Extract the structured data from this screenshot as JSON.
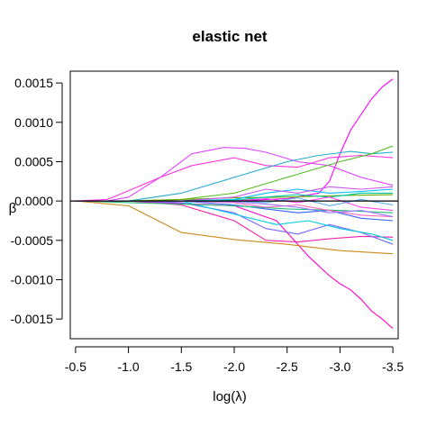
{
  "chart_data": {
    "type": "line",
    "title": "elastic net",
    "xlabel": "log(λ)",
    "ylabel": "β",
    "xlim": [
      -0.45,
      -3.55
    ],
    "ylim": [
      -0.00175,
      0.00165
    ],
    "xticks": [
      -0.5,
      -1.0,
      -1.5,
      -2.0,
      -2.5,
      -3.0,
      -3.5
    ],
    "xtick_labels": [
      "-0.5",
      "-1.0",
      "-1.5",
      "-2.0",
      "-2.5",
      "-3.0",
      "-3.5"
    ],
    "yticks": [
      0.0015,
      0.001,
      0.0005,
      0.0,
      -0.0005,
      -0.001,
      -0.0015
    ],
    "ytick_labels": [
      "0.0015",
      "0.0010",
      "0.0005",
      "0.0000",
      "-0.0005",
      "-0.0010",
      "-0.0015"
    ],
    "reference_line": 0,
    "grid": false,
    "legend": "none",
    "series": [
      {
        "color": "#ff00ff",
        "x": [
          -0.5,
          -1.0,
          -1.5,
          -2.0,
          -2.5,
          -2.8,
          -2.9,
          -3.0,
          -3.1,
          -3.2,
          -3.3,
          -3.4,
          -3.5
        ],
        "y": [
          0,
          0,
          0,
          0,
          3e-05,
          0.0001,
          0.00025,
          0.0006,
          0.0009,
          0.0011,
          0.0013,
          0.00145,
          0.00155
        ]
      },
      {
        "color": "#ff00cc",
        "x": [
          -0.5,
          -1.0,
          -1.3,
          -2.0,
          -2.4,
          -2.7,
          -2.9,
          -3.0,
          -3.1,
          -3.2,
          -3.3,
          -3.4,
          -3.5
        ],
        "y": [
          0,
          0,
          -2e-05,
          -6e-05,
          -0.00025,
          -0.0007,
          -0.00095,
          -0.00105,
          -0.00113,
          -0.00125,
          -0.0014,
          -0.0015,
          -0.00162
        ]
      },
      {
        "color": "#cc8a1a",
        "x": [
          -0.5,
          -1.0,
          -1.5,
          -2.0,
          -2.5,
          -3.0,
          -3.5
        ],
        "y": [
          0,
          -6e-05,
          -0.0004,
          -0.00049,
          -0.00055,
          -0.00063,
          -0.00067
        ]
      },
      {
        "color": "#ff33dd",
        "x": [
          -0.5,
          -0.8,
          -1.0,
          -1.3,
          -1.6,
          -2.0,
          -2.3,
          -2.6,
          -2.9,
          -3.2,
          -3.5
        ],
        "y": [
          0,
          2e-05,
          0.00013,
          0.0003,
          0.00045,
          0.00055,
          0.00045,
          0.00043,
          0.00055,
          0.00058,
          0.00055
        ]
      },
      {
        "color": "#dd44ff",
        "x": [
          -0.5,
          -0.8,
          -1.0,
          -1.3,
          -1.6,
          -1.9,
          -2.1,
          -2.3,
          -2.6,
          -2.9,
          -3.2,
          -3.5
        ],
        "y": [
          0,
          0,
          5e-05,
          0.0003,
          0.0006,
          0.00068,
          0.00067,
          0.00062,
          0.0005,
          0.00045,
          0.0003,
          0.0002
        ]
      },
      {
        "color": "#22aacc",
        "x": [
          -0.5,
          -1.0,
          -1.5,
          -2.0,
          -2.5,
          -2.8,
          -3.1,
          -3.3,
          -3.5
        ],
        "y": [
          0,
          0,
          0.0001,
          0.0003,
          0.0005,
          0.00058,
          0.00063,
          0.0006,
          0.00062
        ]
      },
      {
        "color": "#55bb22",
        "x": [
          -0.5,
          -1.0,
          -1.5,
          -2.0,
          -2.5,
          -3.0,
          -3.3,
          -3.5
        ],
        "y": [
          0,
          0,
          2e-05,
          0.0001,
          0.0003,
          0.0005,
          0.0006,
          0.0007
        ]
      },
      {
        "color": "#ee22aa",
        "x": [
          -0.5,
          -1.0,
          -1.5,
          -2.0,
          -2.3,
          -2.6,
          -2.9,
          -3.2,
          -3.5
        ],
        "y": [
          0,
          0,
          -5e-05,
          -0.00025,
          -0.0005,
          -0.00052,
          -0.00048,
          -0.00045,
          -0.00046
        ]
      },
      {
        "color": "#7766ff",
        "x": [
          -0.5,
          -1.0,
          -1.5,
          -2.0,
          -2.3,
          -2.6,
          -2.9,
          -3.2,
          -3.5
        ],
        "y": [
          0,
          0,
          -2e-05,
          -0.00015,
          -0.00035,
          -0.00042,
          -0.0003,
          -0.0004,
          -0.00055
        ]
      },
      {
        "color": "#00ccdd",
        "x": [
          -0.5,
          -1.0,
          -1.5,
          -1.8,
          -2.1,
          -2.4,
          -2.7,
          -3.0,
          -3.3,
          -3.5
        ],
        "y": [
          0,
          0,
          0,
          -0.0001,
          -0.0002,
          -0.0003,
          -0.00025,
          -0.00035,
          -0.00042,
          -0.0005
        ]
      },
      {
        "color": "#3366ff",
        "x": [
          -0.5,
          -1.0,
          -1.5,
          -2.0,
          -2.3,
          -2.6,
          -2.9,
          -3.2,
          -3.5
        ],
        "y": [
          0,
          0,
          0,
          -5e-05,
          -0.0001,
          -0.00015,
          -0.00012,
          -0.00022,
          -0.00025
        ]
      },
      {
        "color": "#22bb77",
        "x": [
          -0.5,
          -1.0,
          -1.5,
          -2.0,
          -2.5,
          -3.0,
          -3.5
        ],
        "y": [
          0,
          -2e-05,
          -4e-05,
          -6e-05,
          -0.0001,
          -0.00012,
          -0.00015
        ]
      },
      {
        "color": "#66aa00",
        "x": [
          -0.5,
          -1.0,
          -1.5,
          -2.0,
          -2.5,
          -3.0,
          -3.5
        ],
        "y": [
          0,
          0,
          2e-05,
          4e-05,
          5e-05,
          7e-05,
          8e-05
        ]
      },
      {
        "color": "#00bbff",
        "x": [
          -0.5,
          -1.5,
          -2.0,
          -2.3,
          -2.6,
          -2.9,
          -3.2,
          -3.5
        ],
        "y": [
          0,
          0,
          2e-05,
          0.0001,
          0.00015,
          0.0001,
          0.00012,
          0.00015
        ]
      },
      {
        "color": "#cc55ee",
        "x": [
          -0.5,
          -1.5,
          -2.0,
          -2.3,
          -2.6,
          -2.9,
          -3.2,
          -3.5
        ],
        "y": [
          0,
          0,
          5e-05,
          0.00015,
          0.0001,
          0.00018,
          0.00015,
          0.00018
        ]
      },
      {
        "color": "#ff66bb",
        "x": [
          -0.5,
          -1.5,
          -2.0,
          -2.3,
          -2.6,
          -2.9,
          -3.2,
          -3.5
        ],
        "y": [
          0,
          0,
          -2e-05,
          -8e-05,
          -5e-05,
          -0.00012,
          -0.00018,
          -0.0002
        ]
      },
      {
        "color": "#00c4a0",
        "x": [
          -0.5,
          -1.5,
          -2.0,
          -2.3,
          -2.6,
          -2.9,
          -3.2,
          -3.5
        ],
        "y": [
          0,
          0,
          1e-05,
          5e-05,
          8e-05,
          5e-05,
          0.0001,
          0.0001
        ]
      },
      {
        "color": "#9977ff",
        "x": [
          -0.5,
          -1.5,
          -2.0,
          -2.3,
          -2.6,
          -2.9,
          -3.2,
          -3.5
        ],
        "y": [
          0,
          0,
          -1e-05,
          -4e-05,
          -8e-05,
          -0.00015,
          -0.00012,
          -0.0002
        ]
      },
      {
        "color": "#ff44ee",
        "x": [
          -0.5,
          -1.5,
          -2.0,
          -2.3,
          -2.6,
          -2.9,
          -3.2,
          -3.5
        ],
        "y": [
          0,
          0,
          0,
          3e-05,
          -2e-05,
          5e-05,
          -8e-05,
          -0.00012
        ]
      },
      {
        "color": "#55aaee",
        "x": [
          -0.5,
          -1.5,
          -2.0,
          -2.3,
          -2.6,
          -2.9,
          -3.2,
          -3.5
        ],
        "y": [
          0,
          0,
          0,
          -2e-05,
          4e-05,
          -6e-05,
          2e-05,
          -5e-05
        ]
      }
    ]
  }
}
